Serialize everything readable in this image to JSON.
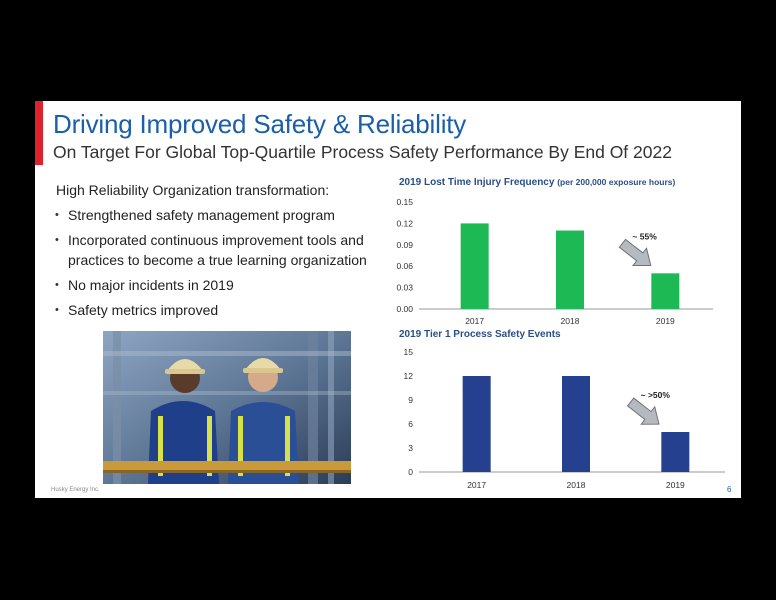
{
  "slide": {
    "title": "Driving Improved Safety & Reliability",
    "subtitle": "On Target For Global Top-Quartile Process Safety Performance By End Of 2022",
    "intro": "High Reliability Organization transformation:",
    "bullets": [
      "Strengthened safety management program",
      "Incorporated continuous improvement tools and practices to become a true learning organization",
      "No major incidents in 2019",
      "Safety metrics improved"
    ],
    "footer": "Husky Energy Inc.",
    "page_number": "6"
  },
  "colors": {
    "accent": "#e0202a",
    "title": "#1a5fa8",
    "series_green": "#1db954",
    "series_blue": "#24408f"
  },
  "chart_data": [
    {
      "type": "bar",
      "title": "2019 Lost Time Injury Frequency",
      "title_note": "(per 200,000 exposure hours)",
      "categories": [
        "2017",
        "2018",
        "2019"
      ],
      "values": [
        0.12,
        0.11,
        0.05
      ],
      "ylim": [
        0,
        0.15
      ],
      "yticks": [
        "0.00",
        "0.03",
        "0.06",
        "0.09",
        "0.12",
        "0.15"
      ],
      "annotation": "~ 55%",
      "color": "#1db954",
      "grid": false
    },
    {
      "type": "bar",
      "title": "2019 Tier 1 Process Safety Events",
      "title_note": "",
      "categories": [
        "2017",
        "2018",
        "2019"
      ],
      "values": [
        12,
        12,
        5
      ],
      "ylim": [
        0,
        15
      ],
      "yticks": [
        "0",
        "3",
        "6",
        "9",
        "12",
        "15"
      ],
      "annotation": "~ >50%",
      "color": "#24408f",
      "grid": false
    }
  ]
}
